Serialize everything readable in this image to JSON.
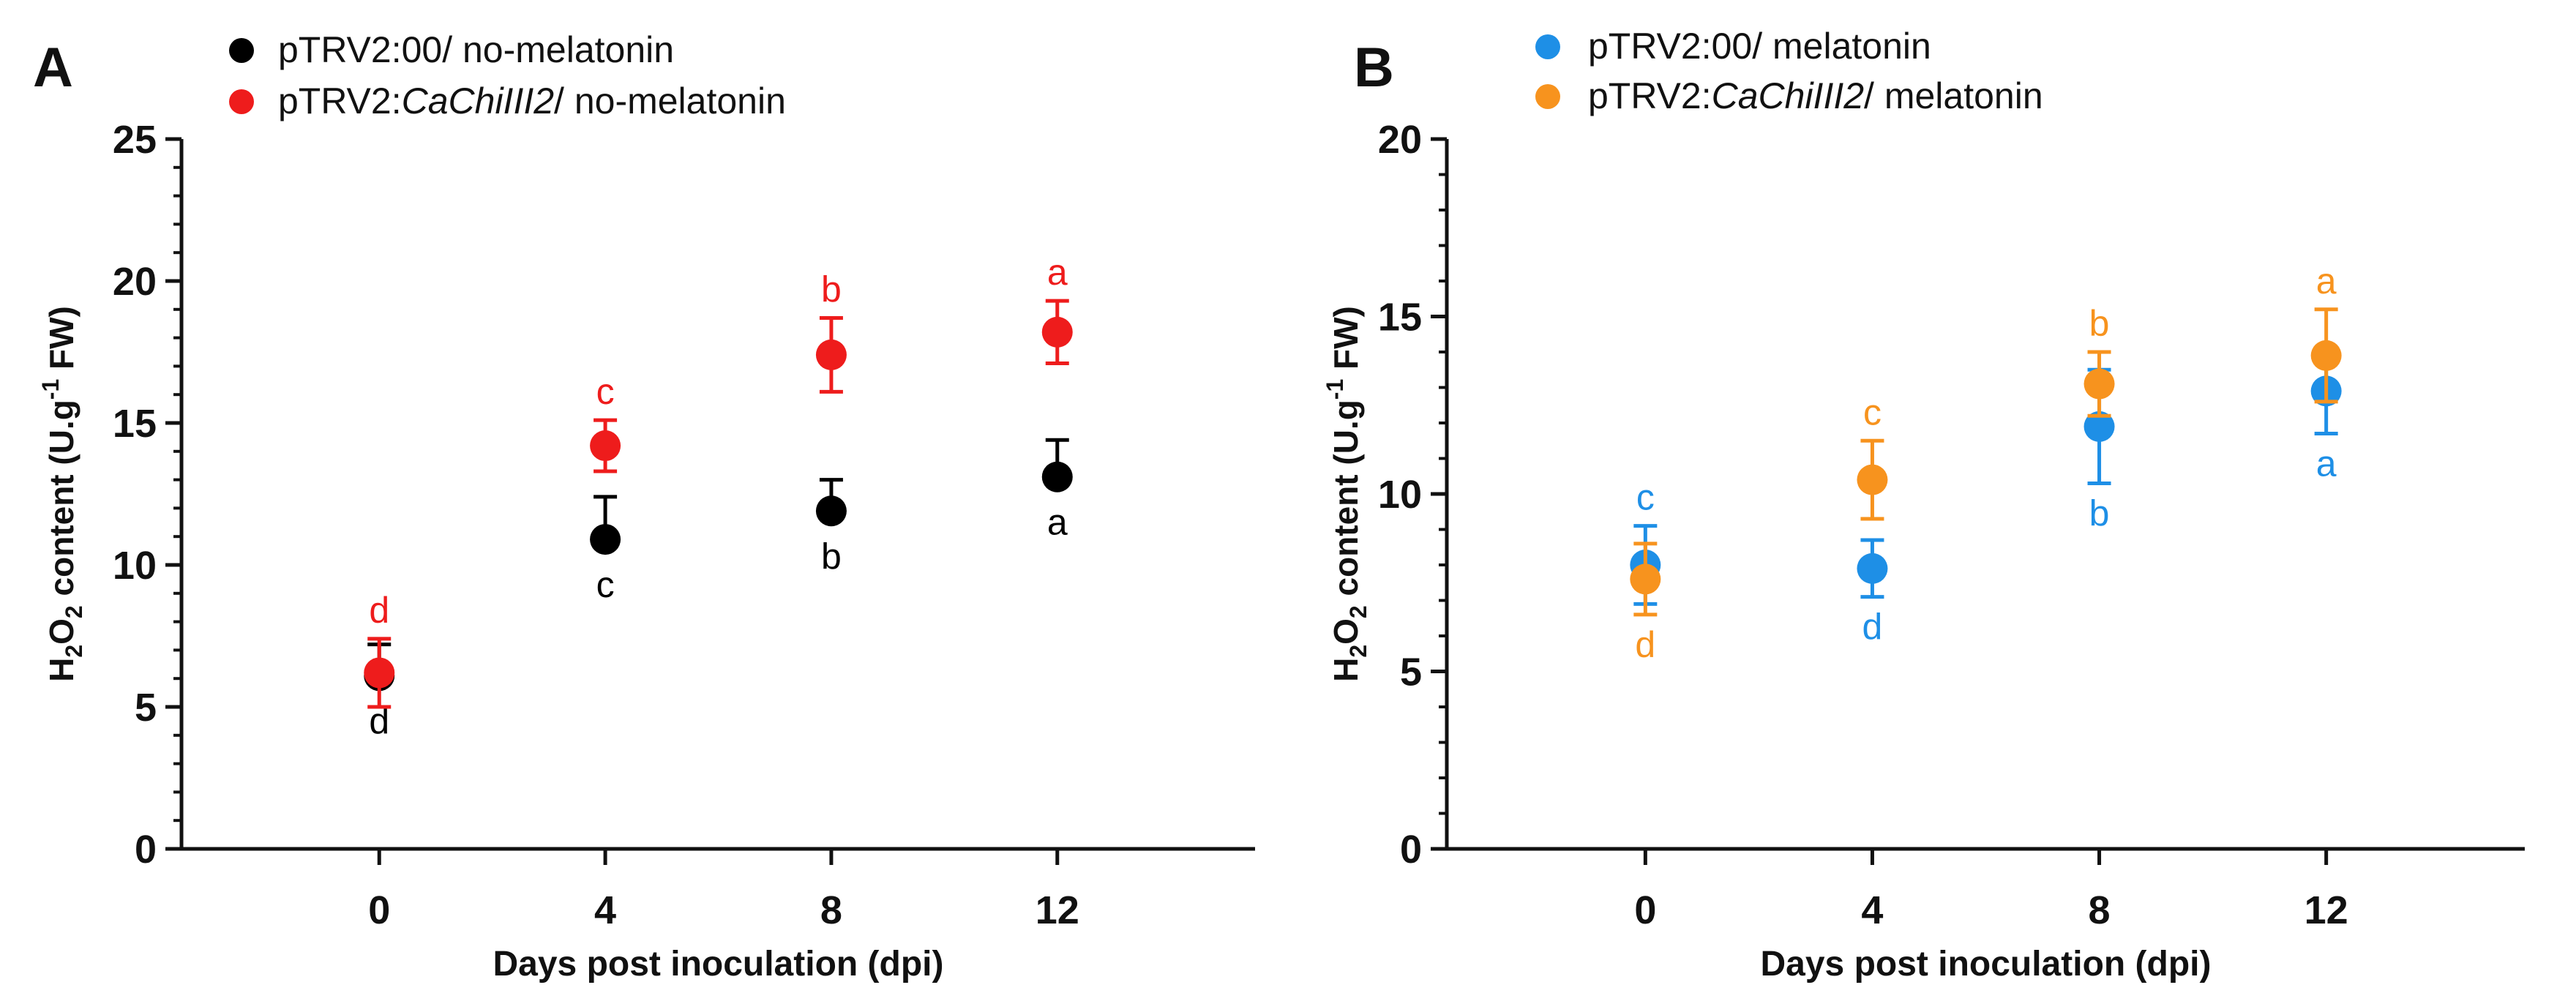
{
  "chart_data": [
    {
      "type": "scatter",
      "panel_label": "A",
      "xlabel": "Days post inoculation (dpi)",
      "ylabel": {
        "pre": "H",
        "sub1": "2",
        "mid": "O",
        "sub2": "2",
        "post1": " content (U.g",
        "sup": "-1",
        "post2": " FW)"
      },
      "ylim": [
        0,
        25
      ],
      "y_major_ticks": [
        0,
        5,
        10,
        15,
        20,
        25
      ],
      "y_minor_step": 1,
      "xlim": [
        -3.5,
        15.5
      ],
      "x_ticks": [
        0,
        4,
        8,
        12
      ],
      "x_tick_labels": [
        "0",
        "4",
        "8",
        "12"
      ],
      "legend_position": "top-left",
      "series": [
        {
          "name": "pTRV2:00/ no-melatonin",
          "name_parts": [
            {
              "text": "pTRV2:00/ no-melatonin",
              "italic": false
            }
          ],
          "color": "#000000",
          "x": [
            0,
            4,
            8,
            12
          ],
          "y": [
            6.1,
            10.9,
            11.9,
            13.1
          ],
          "err": [
            1.1,
            1.5,
            1.1,
            1.3
          ],
          "err_side": "upper",
          "letters": [
            "d",
            "c",
            "b",
            "a"
          ],
          "letter_side": "below"
        },
        {
          "name": "pTRV2:CaChiIII2/ no-melatonin",
          "name_parts": [
            {
              "text": "pTRV2:",
              "italic": false
            },
            {
              "text": "CaChiIII2",
              "italic": true
            },
            {
              "text": "/ no-melatonin",
              "italic": false
            }
          ],
          "color": "#ee1c1c",
          "x": [
            0,
            4,
            8,
            12
          ],
          "y": [
            6.2,
            14.2,
            17.4,
            18.2
          ],
          "err": [
            1.2,
            0.9,
            1.3,
            1.1
          ],
          "err_side": "both",
          "letters": [
            "d",
            "c",
            "b",
            "a"
          ],
          "letter_side": "above"
        }
      ]
    },
    {
      "type": "scatter",
      "panel_label": "B",
      "xlabel": "Days post inoculation (dpi)",
      "ylabel": {
        "pre": "H",
        "sub1": "2",
        "mid": "O",
        "sub2": "2",
        "post1": " content (U.g",
        "sup": "-1",
        "post2": " FW)"
      },
      "ylim": [
        0,
        20
      ],
      "y_major_ticks": [
        0,
        5,
        10,
        15,
        20
      ],
      "y_minor_step": 1,
      "xlim": [
        -3.5,
        15.5
      ],
      "x_ticks": [
        0,
        4,
        8,
        12
      ],
      "x_tick_labels": [
        "0",
        "4",
        "8",
        "12"
      ],
      "legend_position": "top-left",
      "series": [
        {
          "name": "pTRV2:00/ melatonin",
          "name_parts": [
            {
              "text": "pTRV2:00/ melatonin",
              "italic": false
            }
          ],
          "color": "#1e8fe6",
          "x": [
            0,
            4,
            8,
            12
          ],
          "y": [
            8.0,
            7.9,
            11.9,
            12.9
          ],
          "err": [
            1.1,
            0.8,
            1.6,
            1.2
          ],
          "err_side": "both",
          "letters": [
            "c",
            "d",
            "b",
            "a"
          ],
          "letter_side_each": [
            "above",
            "below",
            "below",
            "below"
          ]
        },
        {
          "name": "pTRV2:CaChiIII2/ melatonin",
          "name_parts": [
            {
              "text": "pTRV2:",
              "italic": false
            },
            {
              "text": "CaChiIII2",
              "italic": true
            },
            {
              "text": "/ melatonin",
              "italic": false
            }
          ],
          "color": "#f7931e",
          "x": [
            0,
            4,
            8,
            12
          ],
          "y": [
            7.6,
            10.4,
            13.1,
            13.9
          ],
          "err": [
            1.0,
            1.1,
            0.9,
            1.3
          ],
          "err_side": "both",
          "letters": [
            "d",
            "c",
            "b",
            "a"
          ],
          "letter_side_each": [
            "below",
            "above",
            "above",
            "above"
          ]
        }
      ]
    }
  ]
}
